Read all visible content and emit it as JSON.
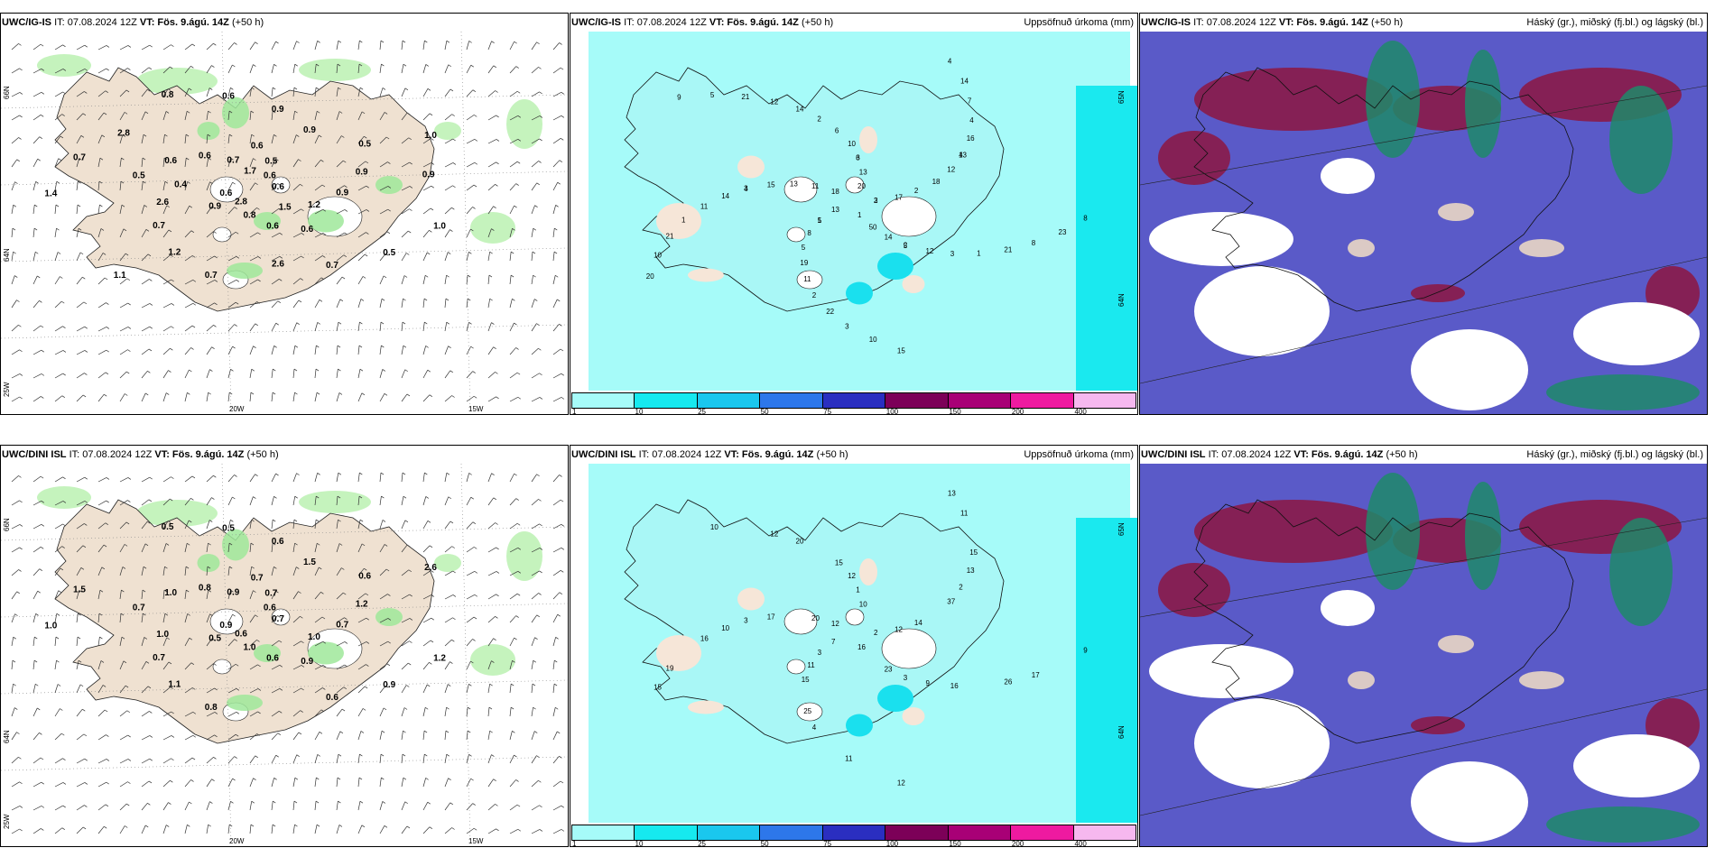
{
  "panels": [
    {
      "id": "top-wind",
      "title_model": "UWC/IG-IS",
      "title_it": "IT: 07.08.2024 12Z",
      "title_vt_label": "VT:",
      "title_vt_value": "Fös. 9.ágú. 14Z",
      "title_lead": "(+50 h)",
      "title_right": "",
      "lat_labels": [
        "66N",
        "64N",
        "25W"
      ],
      "lon_labels": [
        "20W",
        "15W"
      ],
      "values": [
        "0.6",
        "0.9",
        "0.6",
        "0.6",
        "0.5",
        "0.5",
        "0.7",
        "0.8",
        "1.0",
        "0.6",
        "0.5",
        "0.6",
        "0.6",
        "0.9",
        "1.2",
        "0.6",
        "0.5",
        "1.4",
        "0.6",
        "0.8",
        "0.6",
        "0.9",
        "0.7",
        "0.9",
        "0.7",
        "0.7",
        "1.0",
        "2.8",
        "0.7",
        "1.2",
        "2.6",
        "0.9",
        "2.6",
        "2.8",
        "0.9",
        "1.1",
        "1.7",
        "1.5",
        "0.4"
      ]
    },
    {
      "id": "top-precip",
      "title_model": "UWC/IG-IS",
      "title_it": "IT: 07.08.2024 12Z",
      "title_vt_label": "VT:",
      "title_vt_value": "Fös. 9.ágú. 14Z",
      "title_lead": "(+50 h)",
      "title_right": "Uppsöfnuð úrkoma (mm)",
      "lat_labels": [
        "65N",
        "64N"
      ],
      "values": [
        "2",
        "1",
        "3",
        "5",
        "3",
        "4",
        "2",
        "12",
        "8",
        "10",
        "4",
        "1",
        "11",
        "2",
        "5",
        "6",
        "3",
        "11",
        "4",
        "3",
        "5",
        "8",
        "13",
        "13",
        "14",
        "15",
        "12",
        "11",
        "14",
        "21",
        "21",
        "14",
        "15",
        "18",
        "17",
        "8",
        "10",
        "12",
        "14",
        "16",
        "22",
        "21",
        "23",
        "20",
        "20",
        "50",
        "13",
        "18",
        "19",
        "2",
        "1",
        "1",
        "7",
        "10",
        "9",
        "3",
        "5",
        "6",
        "2",
        "4",
        "13"
      ],
      "colorbar": {
        "labels": [
          "1",
          "10",
          "25",
          "50",
          "75",
          "100",
          "150",
          "200",
          "400"
        ],
        "colors": [
          "#a6fbf9",
          "#16e9ef",
          "#1ac7ee",
          "#2d77ea",
          "#2a2ec0",
          "#7c0058",
          "#a80076",
          "#ee1aa0",
          "#f6b8ef"
        ]
      }
    },
    {
      "id": "top-cloud",
      "title_model": "UWC/IG-IS",
      "title_it": "IT: 07.08.2024 12Z",
      "title_vt_label": "VT:",
      "title_vt_value": "Fös. 9.ágú. 14Z",
      "title_lead": "(+50 h)",
      "title_right": "Háský (gr.), miðský (fj.bl.) og lágský (bl.)"
    },
    {
      "id": "bottom-wind",
      "title_model": "UWC/DINI ISL",
      "title_it": "IT: 07.08.2024 12Z",
      "title_vt_label": "VT:",
      "title_vt_value": "Fös. 9.ágú. 14Z",
      "title_lead": "(+50 h)",
      "title_right": "",
      "lat_labels": [
        "66N",
        "64N",
        "25W"
      ],
      "lon_labels": [
        "20W",
        "15W"
      ],
      "values": [
        "0.7",
        "0.5",
        "0.7",
        "0.9",
        "0.7",
        "0.6",
        "0.8",
        "0.5",
        "1.2",
        "0.9",
        "0.7",
        "0.6",
        "1.0",
        "1.2",
        "1.1",
        "0.5",
        "0.9",
        "1.0",
        "0.6",
        "1.0",
        "0.8",
        "0.7",
        "0.7",
        "0.6",
        "0.6",
        "1.5",
        "2.6",
        "0.6",
        "0.9",
        "1.0",
        "1.0",
        "1.5"
      ]
    },
    {
      "id": "bottom-precip",
      "title_model": "UWC/DINI ISL",
      "title_it": "IT: 07.08.2024 12Z",
      "title_vt_label": "VT:",
      "title_vt_value": "Fös. 9.ágú. 14Z",
      "title_lead": "(+50 h)",
      "title_right": "Uppsöfnuð úrkoma (mm)",
      "lat_labels": [
        "65N",
        "64N"
      ],
      "values": [
        "2",
        "3",
        "1",
        "3",
        "3",
        "2",
        "4",
        "12",
        "17",
        "15",
        "13",
        "16",
        "20",
        "14",
        "15",
        "15",
        "16",
        "16",
        "15",
        "11",
        "10",
        "9",
        "7",
        "10",
        "23",
        "17",
        "37",
        "25",
        "20",
        "26",
        "19",
        "11",
        "12",
        "12",
        "12",
        "11",
        "12",
        "9",
        "10",
        "13"
      ],
      "colorbar": {
        "labels": [
          "1",
          "10",
          "25",
          "50",
          "75",
          "100",
          "150",
          "200",
          "400"
        ],
        "colors": [
          "#a6fbf9",
          "#16e9ef",
          "#1ac7ee",
          "#2d77ea",
          "#2a2ec0",
          "#7c0058",
          "#a80076",
          "#ee1aa0",
          "#f6b8ef"
        ]
      }
    },
    {
      "id": "bottom-cloud",
      "title_model": "UWC/DINI ISL",
      "title_it": "IT: 07.08.2024 12Z",
      "title_vt_label": "VT:",
      "title_vt_value": "Fös. 9.ágú. 14Z",
      "title_lead": "(+50 h)",
      "title_right": "Háský (gr.), miðský (fj.bl.) og lágský (bl.)"
    }
  ],
  "colors": {
    "land": "#efe1d1",
    "precip_light": "#a6fbf9",
    "cloud_low": "#5a5ac8",
    "cloud_high": "#8a1a48",
    "cloud_mid": "#1f8a6a"
  }
}
